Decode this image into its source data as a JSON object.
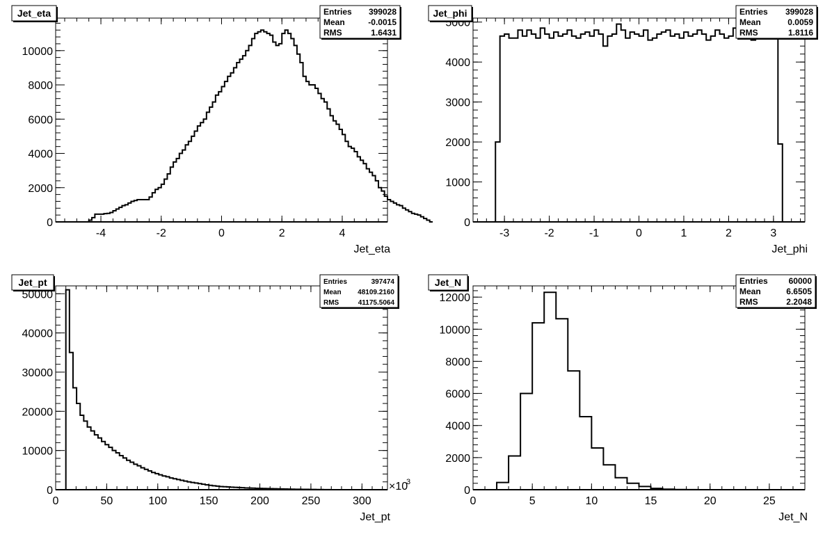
{
  "chart_data": [
    {
      "type": "bar",
      "name": "Jet_eta",
      "title": "Jet_eta",
      "xlabel": "Jet_eta",
      "ylabel": "",
      "xlim": [
        -5.5,
        5.5
      ],
      "ylim": [
        0,
        11900
      ],
      "xticks": [
        -4,
        -2,
        0,
        2,
        4
      ],
      "xtick_labels": [
        "-4",
        "-2",
        "0",
        "2",
        "4"
      ],
      "yticks": [
        0,
        2000,
        4000,
        6000,
        8000,
        10000
      ],
      "ytick_labels": [
        "0",
        "2000",
        "4000",
        "6000",
        "8000",
        "10000"
      ],
      "stats": {
        "entries_label": "Entries",
        "entries": "399028",
        "mean_label": "Mean",
        "mean": "-0.0015",
        "rms_label": "RMS",
        "rms": "1.6431"
      },
      "bin_edges_start": -5.0,
      "bin_width": 0.1,
      "values": [
        0,
        0,
        0,
        0,
        0,
        0,
        100,
        250,
        450,
        450,
        450,
        480,
        500,
        550,
        650,
        750,
        850,
        950,
        1000,
        1100,
        1200,
        1250,
        1300,
        1300,
        1300,
        1300,
        1450,
        1700,
        1900,
        2000,
        2200,
        2500,
        2800,
        3200,
        3500,
        3700,
        4000,
        4200,
        4500,
        4700,
        5000,
        5300,
        5600,
        5800,
        6000,
        6400,
        6700,
        7000,
        7400,
        7600,
        7900,
        8200,
        8500,
        8700,
        9000,
        9300,
        9500,
        9700,
        10000,
        10300,
        10700,
        11000,
        11100,
        11200,
        11100,
        11000,
        10900,
        10500,
        10300,
        10400,
        11000,
        11200,
        11000,
        10700,
        10300,
        9800,
        9300,
        8500,
        8200,
        8000,
        8000,
        7800,
        7500,
        7200,
        7000,
        6600,
        6200,
        5900,
        5700,
        5400,
        5100,
        4700,
        4400,
        4300,
        4100,
        3800,
        3600,
        3400,
        3100,
        2900,
        2700,
        2400,
        2000,
        1800,
        1500,
        1300,
        1200,
        1100,
        1000,
        950,
        800,
        700,
        600,
        500,
        450,
        400,
        300,
        200,
        100,
        0
      ]
    },
    {
      "type": "bar",
      "name": "Jet_phi",
      "title": "Jet_phi",
      "xlabel": "Jet_phi",
      "ylabel": "",
      "xlim": [
        -3.7,
        3.7
      ],
      "ylim": [
        0,
        5100
      ],
      "xticks": [
        -3,
        -2,
        -1,
        0,
        1,
        2,
        3
      ],
      "xtick_labels": [
        "-3",
        "-2",
        "-1",
        "0",
        "1",
        "2",
        "3"
      ],
      "yticks": [
        0,
        1000,
        2000,
        3000,
        4000,
        5000
      ],
      "ytick_labels": [
        "0",
        "1000",
        "2000",
        "3000",
        "4000",
        "5000"
      ],
      "stats": {
        "entries_label": "Entries",
        "entries": "399028",
        "mean_label": "Mean",
        "mean": "0.0059",
        "rms_label": "RMS",
        "rms": "1.8116"
      },
      "bin_edges_start": -3.2,
      "bin_width": 0.1,
      "values": [
        2000,
        4650,
        4700,
        4600,
        4600,
        4800,
        4650,
        4800,
        4700,
        4600,
        4850,
        4700,
        4600,
        4750,
        4650,
        4700,
        4800,
        4650,
        4600,
        4700,
        4750,
        4650,
        4800,
        4700,
        4400,
        4650,
        4700,
        4950,
        4800,
        4600,
        4750,
        4700,
        4650,
        4800,
        4550,
        4600,
        4700,
        4750,
        4800,
        4650,
        4700,
        4600,
        4750,
        4650,
        4700,
        4800,
        4700,
        4550,
        4650,
        4800,
        4700,
        4600,
        4650,
        4850,
        4800,
        4600,
        4700,
        4550,
        4850,
        4900,
        4700,
        4800,
        4600,
        1950
      ]
    },
    {
      "type": "bar",
      "name": "Jet_pt",
      "title": "Jet_pt",
      "xlabel": "Jet_pt",
      "ylabel": "",
      "x_multiplier": "×10",
      "x_multiplier_exp": "3",
      "xlim": [
        0,
        325
      ],
      "ylim": [
        0,
        52000
      ],
      "xticks": [
        0,
        50,
        100,
        150,
        200,
        250,
        300
      ],
      "xtick_labels": [
        "0",
        "50",
        "100",
        "150",
        "200",
        "250",
        "300"
      ],
      "yticks": [
        0,
        10000,
        20000,
        30000,
        40000,
        50000
      ],
      "ytick_labels": [
        "0",
        "10000",
        "20000",
        "30000",
        "40000",
        "50000"
      ],
      "stats": {
        "entries_label": "Entries",
        "entries": "397474",
        "mean_label": "Mean",
        "mean": "48109.2160",
        "rms_label": "RMS",
        "rms": "41175.5064"
      },
      "bin_edges_start": 10,
      "bin_width": 3.5,
      "values": [
        51000,
        35000,
        26000,
        22000,
        19000,
        17500,
        16000,
        15000,
        14000,
        13200,
        12300,
        11500,
        10800,
        10000,
        9400,
        8700,
        8100,
        7500,
        7000,
        6500,
        6100,
        5600,
        5200,
        4800,
        4400,
        4100,
        3800,
        3500,
        3300,
        3000,
        2800,
        2600,
        2400,
        2200,
        2000,
        1850,
        1700,
        1550,
        1400,
        1250,
        1100,
        1000,
        900,
        800,
        750,
        700,
        650,
        600,
        550,
        500,
        450,
        420,
        390,
        360,
        330,
        300,
        280,
        260,
        240,
        220,
        200,
        180,
        160,
        140,
        120,
        100,
        90,
        80,
        70,
        60,
        50,
        40,
        30,
        20,
        10,
        0
      ]
    },
    {
      "type": "bar",
      "name": "Jet_N",
      "title": "Jet_N",
      "xlabel": "Jet_N",
      "ylabel": "",
      "xlim": [
        0,
        28
      ],
      "ylim": [
        0,
        12700
      ],
      "xticks": [
        0,
        5,
        10,
        15,
        20,
        25
      ],
      "xtick_labels": [
        "0",
        "5",
        "10",
        "15",
        "20",
        "25"
      ],
      "yticks": [
        0,
        2000,
        4000,
        6000,
        8000,
        10000,
        12000
      ],
      "ytick_labels": [
        "0",
        "2000",
        "4000",
        "6000",
        "8000",
        "10000",
        "12000"
      ],
      "stats": {
        "entries_label": "Entries",
        "entries": "60000",
        "mean_label": "Mean",
        "mean": "6.6505",
        "rms_label": "RMS",
        "rms": "2.2048"
      },
      "bin_edges_start": 0,
      "bin_width": 1,
      "values": [
        0,
        0,
        450,
        2100,
        6000,
        10400,
        12300,
        10650,
        7400,
        4550,
        2600,
        1550,
        750,
        400,
        200,
        80,
        30,
        10,
        5,
        0,
        0,
        0,
        0,
        0,
        0,
        0,
        0,
        0
      ]
    }
  ]
}
